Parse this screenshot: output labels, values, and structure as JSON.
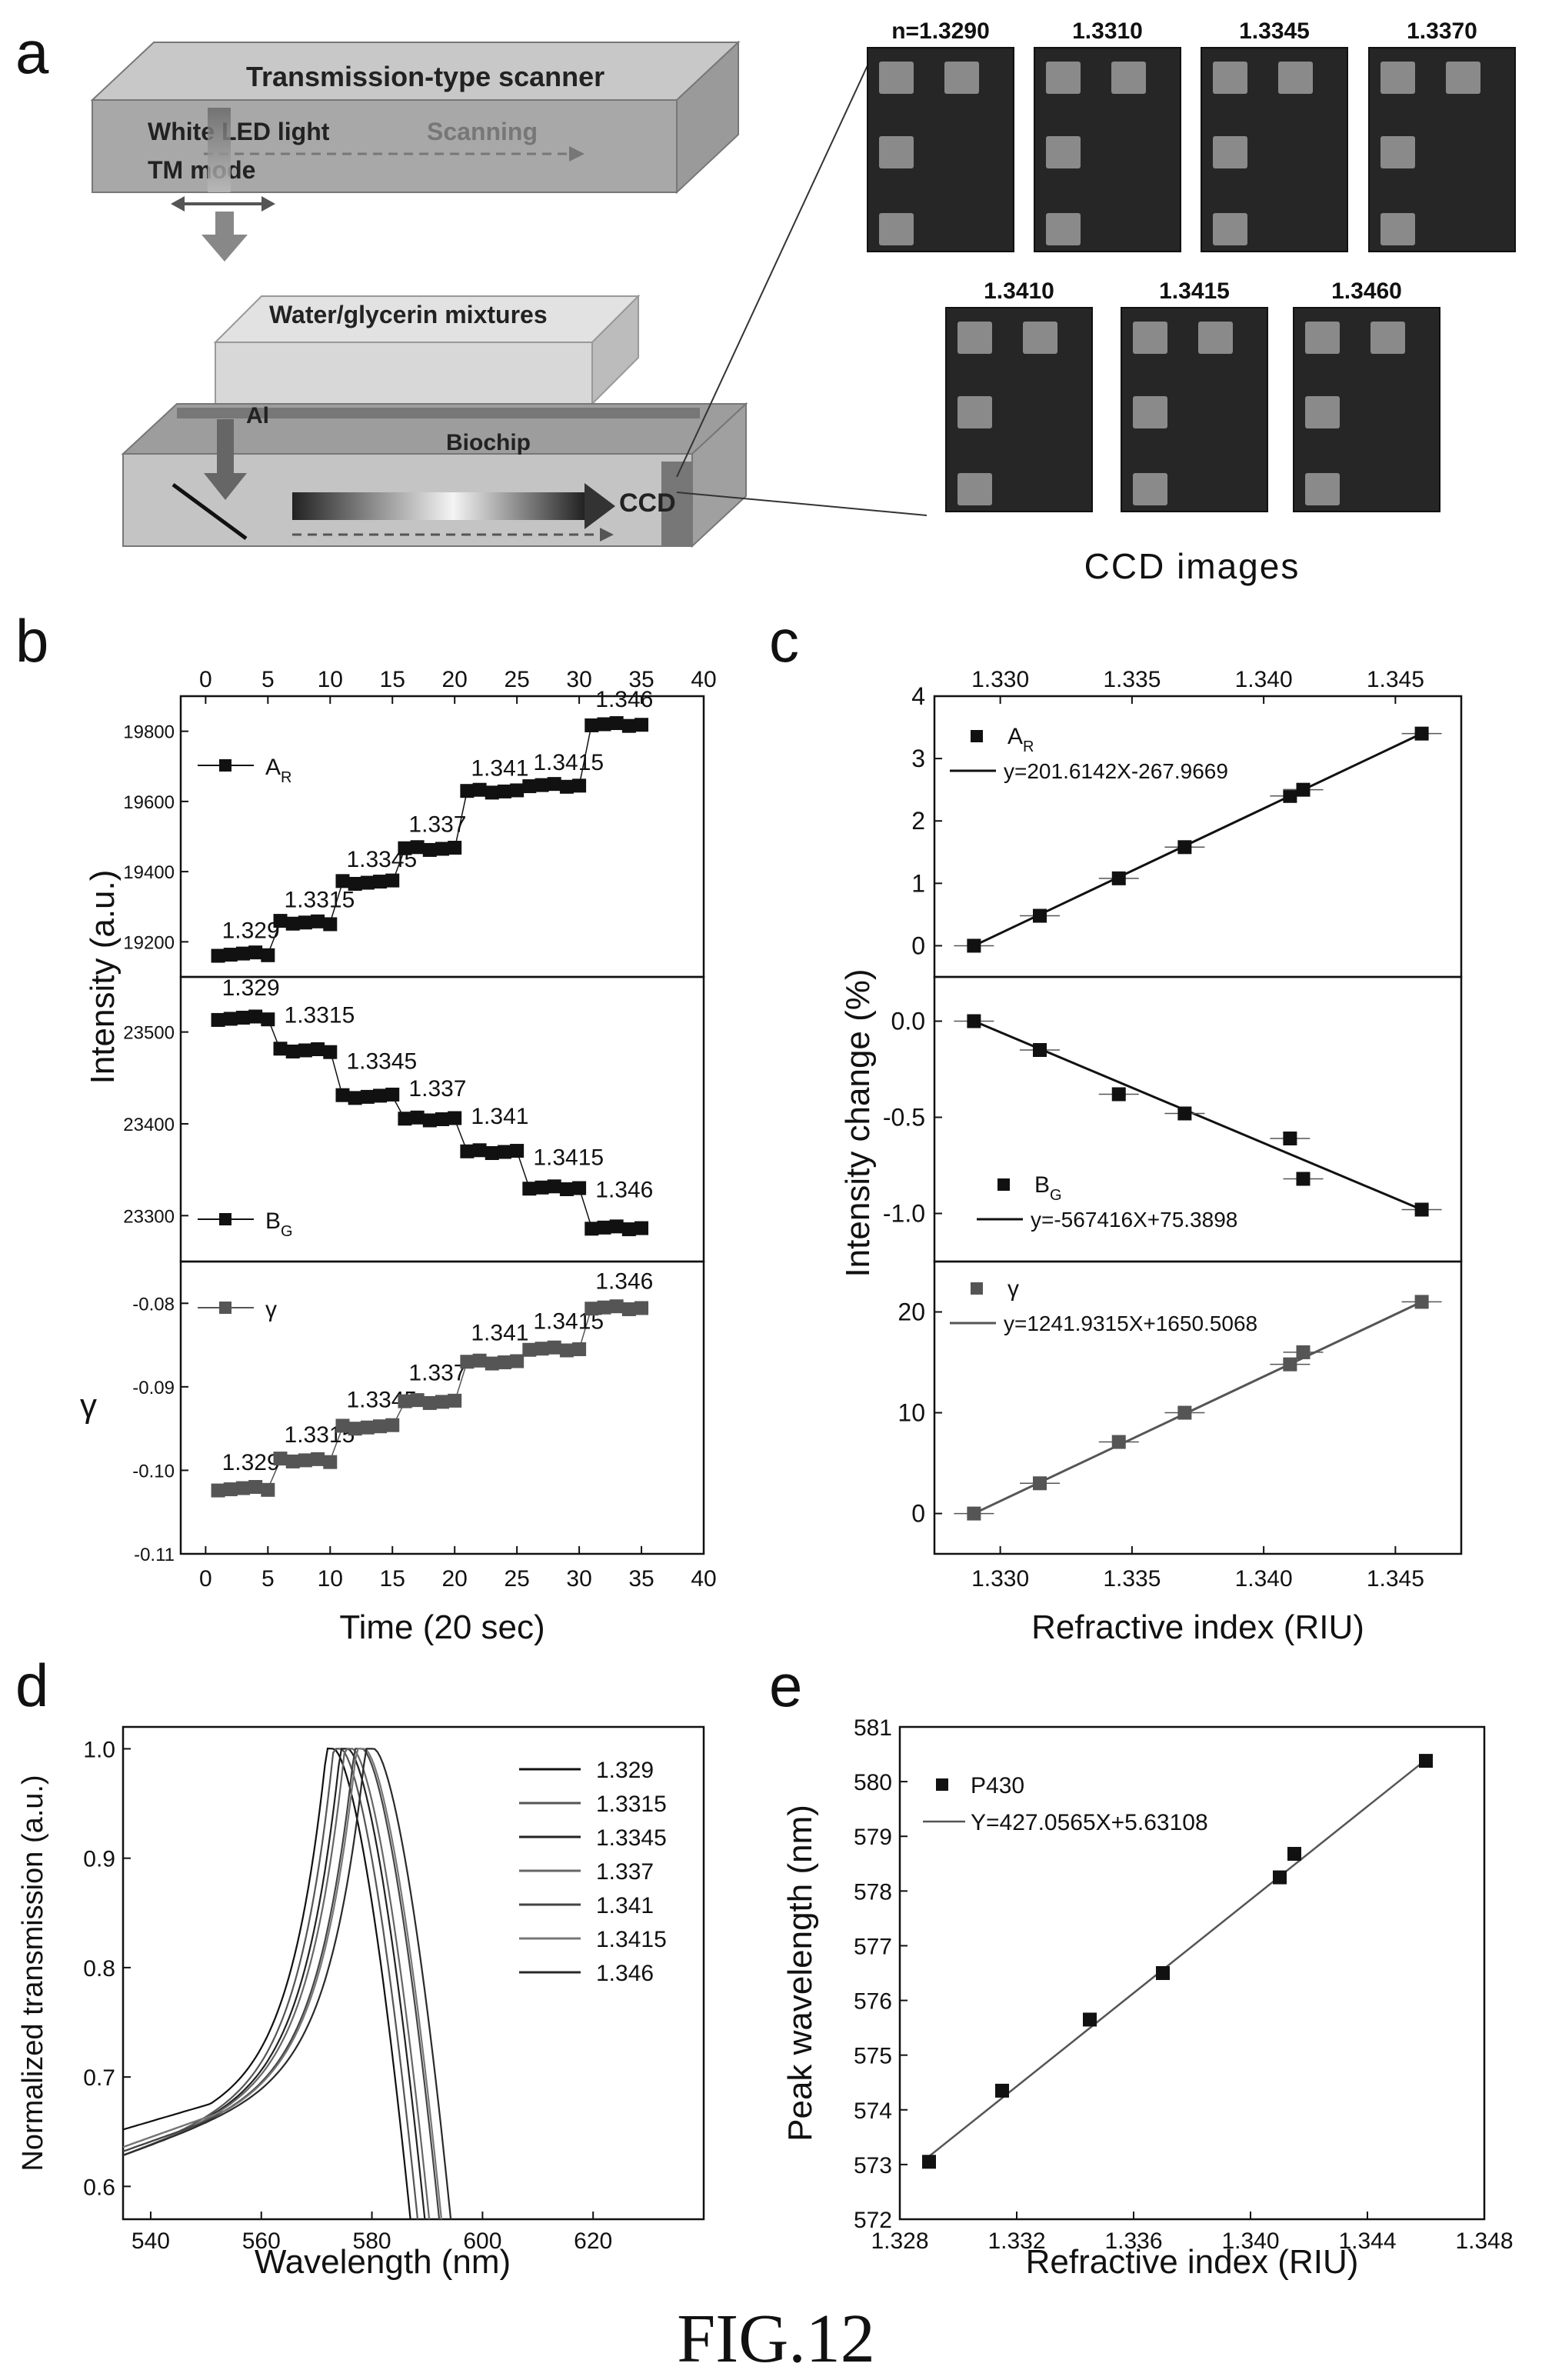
{
  "panel_labels": {
    "a": "a",
    "b": "b",
    "c": "c",
    "d": "d",
    "e": "e"
  },
  "figure_caption": "FIG.12",
  "panel_a": {
    "scanner_title": "Transmission-type scanner",
    "light_label": "White LED light",
    "mode_label": "TM mode",
    "scanning_label": "Scanning",
    "sample_label": "Water/glycerin mixtures",
    "metal_label": "Al",
    "chip_label": "Biochip",
    "detector_label": "CCD",
    "images_caption": "CCD images",
    "ccd_images": [
      {
        "label": "n=1.3290",
        "value": 1.329
      },
      {
        "label": "1.3310",
        "value": 1.331
      },
      {
        "label": "1.3345",
        "value": 1.3345
      },
      {
        "label": "1.3370",
        "value": 1.337
      },
      {
        "label": "1.3410",
        "value": 1.341
      },
      {
        "label": "1.3415",
        "value": 1.3415
      },
      {
        "label": "1.3460",
        "value": 1.346
      }
    ]
  },
  "colors": {
    "dark": "#111111",
    "gray": "#555555",
    "diagram_top": "#b8b8b8",
    "diagram_side": "#8c8c8c",
    "ccd_bg": "#262626",
    "ccd_spot": "#8a8a8a"
  },
  "chart_data": [
    {
      "id": "b",
      "type": "scatter",
      "xlabel": "Time (20 sec)",
      "ylabel": "Intensity (a.u.)",
      "xlim": [
        -2,
        40
      ],
      "x_ticks": [
        0,
        5,
        10,
        15,
        20,
        25,
        30,
        35,
        40
      ],
      "step_labels": [
        "1.329",
        "1.3315",
        "1.3345",
        "1.337",
        "1.341",
        "1.3415",
        "1.346"
      ],
      "subplots": [
        {
          "name": "A",
          "name_sub": "R",
          "ylim": [
            19100,
            19900
          ],
          "y_ticks": [
            19200,
            19400,
            19600,
            19800
          ],
          "step_values": [
            19165,
            19255,
            19370,
            19465,
            19630,
            19645,
            19820
          ],
          "annotation_y": [
            19198,
            19285,
            19400,
            19500,
            19660,
            19676,
            19856
          ],
          "color": "#111111"
        },
        {
          "name": "B",
          "name_sub": "G",
          "ylim": [
            23250,
            23560
          ],
          "y_ticks": [
            23300,
            23400,
            23500
          ],
          "step_values": [
            23515,
            23480,
            23430,
            23405,
            23370,
            23330,
            23287
          ],
          "annotation_y": [
            23535,
            23505,
            23455,
            23425,
            23395,
            23350,
            23315
          ],
          "color": "#111111"
        },
        {
          "name": "γ",
          "name_sub": "",
          "ylabel": "γ",
          "ylim": [
            -0.11,
            -0.075
          ],
          "y_ticks": [
            -0.08,
            -0.09,
            -0.1,
            -0.11
          ],
          "y_tick_labels": [
            "-0.08",
            "-0.09",
            "-0.10",
            "-0.11"
          ],
          "step_values": [
            -0.1022,
            -0.0988,
            -0.0948,
            -0.0918,
            -0.087,
            -0.0855,
            -0.0805
          ],
          "annotation_y": [
            -0.1005,
            -0.0972,
            -0.093,
            -0.0898,
            -0.085,
            -0.0836,
            -0.0788
          ],
          "color": "#555555"
        }
      ]
    },
    {
      "id": "c",
      "type": "scatter",
      "xlabel": "Refractive index (RIU)",
      "ylabel": "Intensity change (%)",
      "xlim": [
        1.3275,
        1.3475
      ],
      "x_ticks": [
        1.33,
        1.335,
        1.34,
        1.345
      ],
      "x_tick_labels": [
        "1.330",
        "1.335",
        "1.340",
        "1.345"
      ],
      "x": [
        1.329,
        1.3315,
        1.3345,
        1.337,
        1.341,
        1.3415,
        1.346
      ],
      "subplots": [
        {
          "name": "A",
          "name_sub": "R",
          "fit": "y=201.6142X-267.9669",
          "fit_line": [
            [
              1.329,
              0.0
            ],
            [
              1.346,
              3.4
            ]
          ],
          "ylim": [
            -0.5,
            4
          ],
          "y_ticks": [
            0,
            1,
            2,
            3,
            4
          ],
          "y_tick_labels": [
            "0",
            "1",
            "2",
            "3",
            "4"
          ],
          "values": [
            0.0,
            0.48,
            1.08,
            1.58,
            2.4,
            2.5,
            3.4
          ],
          "color": "#111111"
        },
        {
          "name": "B",
          "name_sub": "G",
          "fit": "y=-567416X+75.3898",
          "fit_line": [
            [
              1.329,
              0.0
            ],
            [
              1.346,
              0.98
            ]
          ],
          "ylim": [
            -0.23,
            1.25
          ],
          "y_ticks": [
            0.0,
            0.5,
            1.0
          ],
          "y_tick_labels": [
            "0.0",
            "-0.5",
            "-1.0"
          ],
          "inverted": true,
          "values": [
            0.0,
            0.15,
            0.38,
            0.48,
            0.61,
            0.82,
            0.98
          ],
          "color": "#111111"
        },
        {
          "name": "γ",
          "name_sub": "",
          "fit": "y=1241.9315X+1650.5068",
          "fit_line": [
            [
              1.329,
              0.0
            ],
            [
              1.346,
              21.0
            ]
          ],
          "ylim": [
            -4,
            25
          ],
          "y_ticks": [
            0,
            10,
            20
          ],
          "y_tick_labels": [
            "0",
            "10",
            "20"
          ],
          "values": [
            0.0,
            3.0,
            7.1,
            10.0,
            14.8,
            16.0,
            21.0
          ],
          "color": "#555555"
        }
      ]
    },
    {
      "id": "d",
      "type": "line",
      "xlabel": "Wavelength (nm)",
      "ylabel": "Normalized transmission (a.u.)",
      "xlim": [
        535,
        640
      ],
      "ylim": [
        0.57,
        1.02
      ],
      "x_ticks": [
        540,
        560,
        580,
        600,
        620
      ],
      "y_ticks": [
        0.6,
        0.7,
        0.8,
        0.9,
        1.0
      ],
      "y_tick_labels": [
        "0.6",
        "0.7",
        "0.8",
        "0.9",
        "1.0"
      ],
      "series": [
        {
          "name": "1.329",
          "peak": 573.1,
          "color": "#111111"
        },
        {
          "name": "1.3315",
          "peak": 574.4,
          "color": "#555555"
        },
        {
          "name": "1.3345",
          "peak": 575.7,
          "color": "#222222"
        },
        {
          "name": "1.337",
          "peak": 576.5,
          "color": "#666666"
        },
        {
          "name": "1.341",
          "peak": 578.3,
          "color": "#444444"
        },
        {
          "name": "1.3415",
          "peak": 578.7,
          "color": "#777777"
        },
        {
          "name": "1.346",
          "peak": 580.4,
          "color": "#2a2a2a"
        }
      ]
    },
    {
      "id": "e",
      "type": "scatter",
      "xlabel": "Refractive index (RIU)",
      "ylabel": "Peak wavelength (nm)",
      "xlim": [
        1.328,
        1.348
      ],
      "ylim": [
        572,
        581
      ],
      "x_ticks": [
        1.328,
        1.332,
        1.336,
        1.34,
        1.344,
        1.348
      ],
      "x_tick_labels": [
        "1.328",
        "1.332",
        "1.336",
        "1.340",
        "1.344",
        "1.348"
      ],
      "y_ticks": [
        572,
        573,
        574,
        575,
        576,
        577,
        578,
        579,
        580,
        581
      ],
      "series": [
        {
          "name": "P430",
          "x": [
            1.329,
            1.3315,
            1.3345,
            1.337,
            1.341,
            1.3415,
            1.346
          ],
          "values": [
            573.05,
            574.35,
            575.65,
            576.5,
            578.25,
            578.68,
            580.38
          ],
          "color": "#111111"
        }
      ],
      "fit": "Y=427.0565X+5.63108",
      "fit_line": [
        [
          1.329,
          573.15
        ],
        [
          1.346,
          580.4
        ]
      ]
    }
  ]
}
